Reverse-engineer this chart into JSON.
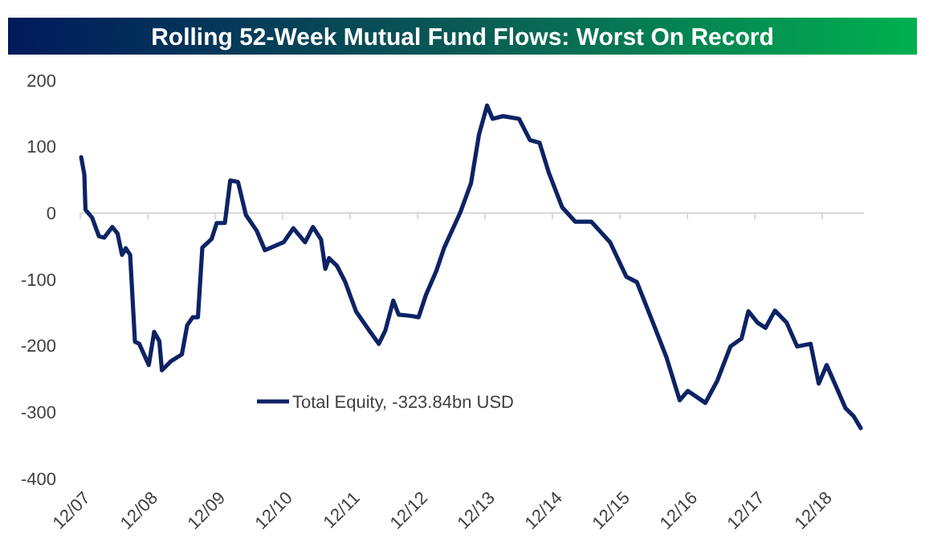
{
  "chart_data": {
    "type": "line",
    "title": "Rolling 52-Week Mutual Fund Flows: Worst On Record",
    "x": [
      "2007-12-06",
      "2007-12-23",
      "2007-12-29",
      "2008-02-03",
      "2008-03-11",
      "2008-04-09",
      "2008-05-22",
      "2008-06-20",
      "2008-07-14",
      "2008-08-03",
      "2008-08-27",
      "2008-09-22",
      "2008-10-15",
      "2008-12-06",
      "2009-01-04",
      "2009-02-01",
      "2009-02-15",
      "2009-04-06",
      "2009-06-03",
      "2009-07-02",
      "2009-08-01",
      "2009-08-29",
      "2009-09-22",
      "2009-11-11",
      "2009-12-09",
      "2010-01-22",
      "2010-02-20",
      "2010-04-03",
      "2010-05-16",
      "2010-07-14",
      "2010-08-27",
      "2010-12-06",
      "2011-01-28",
      "2011-04-01",
      "2011-05-14",
      "2011-06-27",
      "2011-07-20",
      "2011-08-09",
      "2011-09-22",
      "2011-11-05",
      "2012-01-02",
      "2012-03-14",
      "2012-05-05",
      "2012-06-09",
      "2012-07-22",
      "2012-08-20",
      "2012-10-27",
      "2012-12-06",
      "2013-01-14",
      "2013-03-11",
      "2013-04-24",
      "2013-07-20",
      "2013-09-16",
      "2013-10-29",
      "2013-12-12",
      "2014-01-11",
      "2014-03-08",
      "2014-06-03",
      "2014-08-01",
      "2014-09-22",
      "2014-11-11",
      "2015-01-22",
      "2015-04-03",
      "2015-06-29",
      "2015-10-09",
      "2016-01-05",
      "2016-03-02",
      "2016-05-28",
      "2016-08-09",
      "2016-10-20",
      "2016-12-03",
      "2017-03-08",
      "2017-05-11",
      "2017-07-22",
      "2017-09-20",
      "2017-10-27",
      "2017-12-15",
      "2018-01-28",
      "2018-03-20",
      "2018-05-22",
      "2018-07-18",
      "2018-09-29",
      "2018-11-12",
      "2018-12-25",
      "2019-04-06",
      "2019-05-20",
      "2019-06-27"
    ],
    "series": [
      {
        "name": "Total Equity, -323.84bn USD",
        "color": "#0d2364",
        "values": [
          84,
          58,
          5,
          -7,
          -35,
          -37,
          -21,
          -31,
          -63,
          -53,
          -63,
          -194,
          -197,
          -229,
          -179,
          -193,
          -237,
          -223,
          -213,
          -169,
          -157,
          -157,
          -52,
          -39,
          -15,
          -15,
          49,
          47,
          -3,
          -27,
          -56,
          -44,
          -23,
          -44,
          -21,
          -40,
          -84,
          -68,
          -80,
          -104,
          -148,
          -177,
          -197,
          -177,
          -132,
          -153,
          -155,
          -157,
          -124,
          -88,
          -52,
          1,
          45,
          118,
          162,
          142,
          146,
          142,
          110,
          106,
          61,
          9,
          -13,
          -13,
          -44,
          -96,
          -104,
          -165,
          -217,
          -282,
          -268,
          -286,
          -253,
          -201,
          -189,
          -148,
          -165,
          -173,
          -147,
          -165,
          -201,
          -197,
          -257,
          -229,
          -294,
          -306,
          -324
        ]
      }
    ],
    "xlim": [
      "2007-12-01",
      "2019-07-15"
    ],
    "xticks": [
      {
        "value": "2007-12-01",
        "label": "12/07"
      },
      {
        "value": "2008-12-01",
        "label": "12/08"
      },
      {
        "value": "2009-12-01",
        "label": "12/09"
      },
      {
        "value": "2010-12-01",
        "label": "12/10"
      },
      {
        "value": "2011-12-01",
        "label": "12/11"
      },
      {
        "value": "2012-12-01",
        "label": "12/12"
      },
      {
        "value": "2013-12-01",
        "label": "12/13"
      },
      {
        "value": "2014-12-01",
        "label": "12/14"
      },
      {
        "value": "2015-12-01",
        "label": "12/15"
      },
      {
        "value": "2016-12-01",
        "label": "12/16"
      },
      {
        "value": "2017-12-01",
        "label": "12/17"
      },
      {
        "value": "2018-12-01",
        "label": "12/18"
      }
    ],
    "ylim": [
      -400,
      200
    ],
    "yticks": [
      -400,
      -300,
      -200,
      -100,
      0,
      100,
      200
    ],
    "ref_lines": [
      {
        "axis": "y",
        "value": 0,
        "color": "#d9d9d9"
      }
    ],
    "legend": "bottom",
    "marker": "none",
    "line_style": "solid"
  }
}
